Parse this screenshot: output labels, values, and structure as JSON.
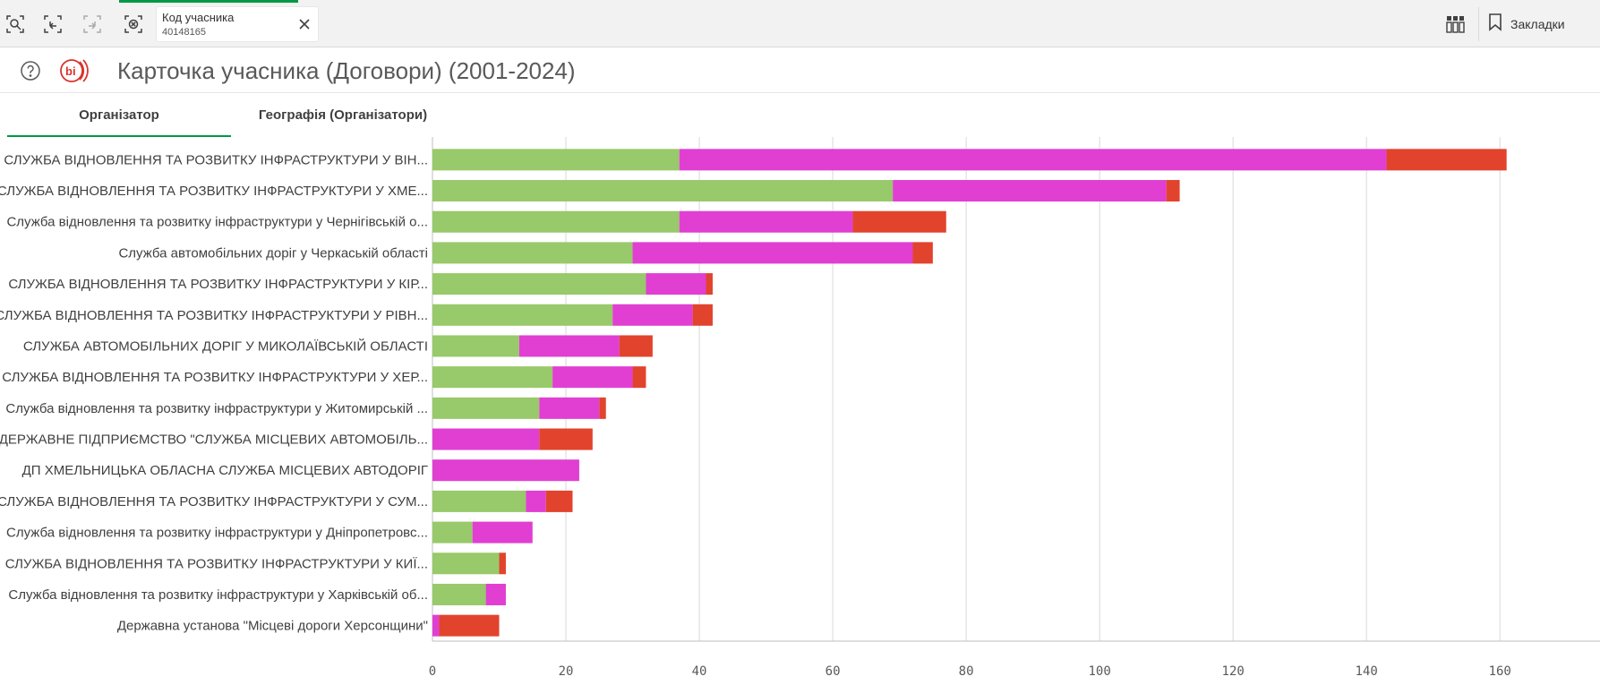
{
  "toolbar": {
    "icons": [
      "smart-search-icon",
      "step-back-icon",
      "step-forward-icon",
      "clear-selections-icon",
      "sheets-icon",
      "bookmark-icon"
    ],
    "selection": {
      "label": "Код учасника",
      "value": "40148165"
    },
    "bookmarks_label": "Закладки"
  },
  "colors": {
    "accent": "#009845",
    "series": [
      "#98c96a",
      "#e03fd2",
      "#e2432d"
    ],
    "logo": "#d9332c"
  },
  "header": {
    "logo_text": "bi",
    "title": "Карточка учасника (Договори) (2001-2024)"
  },
  "tabs": [
    {
      "label": "Організатор",
      "active": true
    },
    {
      "label": "Географія (Організатори)",
      "active": false
    }
  ],
  "chart_data": {
    "type": "bar",
    "orientation": "horizontal",
    "stacked": true,
    "categories": [
      "СЛУЖБА ВІДНОВЛЕННЯ ТА РОЗВИТКУ ІНФРАСТРУКТУРИ  У ВІН...",
      "СЛУЖБА ВІДНОВЛЕННЯ ТА РОЗВИТКУ ІНФРАСТРУКТУРИ У ХМЕ...",
      "Служба відновлення та розвитку інфраструктури у Чернігівській о...",
      "Служба автомобільних доріг у Черкаській області",
      "СЛУЖБА ВІДНОВЛЕННЯ ТА РОЗВИТКУ ІНФРАСТРУКТУРИ У КІР...",
      "СЛУЖБА ВІДНОВЛЕННЯ ТА РОЗВИТКУ ІНФРАСТРУКТУРИ У РІВН...",
      "СЛУЖБА АВТОМОБІЛЬНИХ ДОРІГ У МИКОЛАЇВСЬКІЙ ОБЛАСТІ",
      "СЛУЖБА ВІДНОВЛЕННЯ ТА РОЗВИТКУ ІНФРАСТРУКТУРИ У ХЕР...",
      "Служба відновлення та розвитку інфраструктури у Житомирській ...",
      "ДЕРЖАВНЕ ПІДПРИЄМСТВО \"СЛУЖБА МІСЦЕВИХ АВТОМОБІЛЬ...",
      "ДП ХМЕЛЬНИЦЬКА ОБЛАСНА СЛУЖБА МІСЦЕВИХ АВТОДОРІГ",
      "СЛУЖБА ВІДНОВЛЕННЯ ТА РОЗВИТКУ ІНФРАСТРУКТУРИ У СУМ...",
      "Служба відновлення та розвитку інфраструктури у Дніпропетровс...",
      "СЛУЖБА ВІДНОВЛЕННЯ ТА РОЗВИТКУ ІНФРАСТРУКТУРИ У КИЇ...",
      "Служба відновлення та розвитку інфраструктури у Харківській об...",
      "Державна установа \"Місцеві дороги Херсонщини\""
    ],
    "series": [
      {
        "color": "#98c96a",
        "values": [
          37,
          69,
          37,
          30,
          32,
          27,
          13,
          18,
          16,
          0,
          0,
          14,
          6,
          10,
          8,
          0
        ]
      },
      {
        "color": "#e03fd2",
        "values": [
          106,
          41,
          26,
          42,
          9,
          12,
          15,
          12,
          9,
          16,
          22,
          3,
          9,
          0,
          3,
          1
        ]
      },
      {
        "color": "#e2432d",
        "values": [
          18,
          2,
          14,
          3,
          1,
          3,
          5,
          2,
          1,
          8,
          0,
          4,
          0,
          1,
          0,
          9
        ]
      }
    ],
    "xlim": [
      0,
      175
    ],
    "xticks": [
      "0",
      "20",
      "40",
      "60",
      "80",
      "100",
      "120",
      "140",
      "160"
    ],
    "grid": true,
    "legend": "none"
  }
}
